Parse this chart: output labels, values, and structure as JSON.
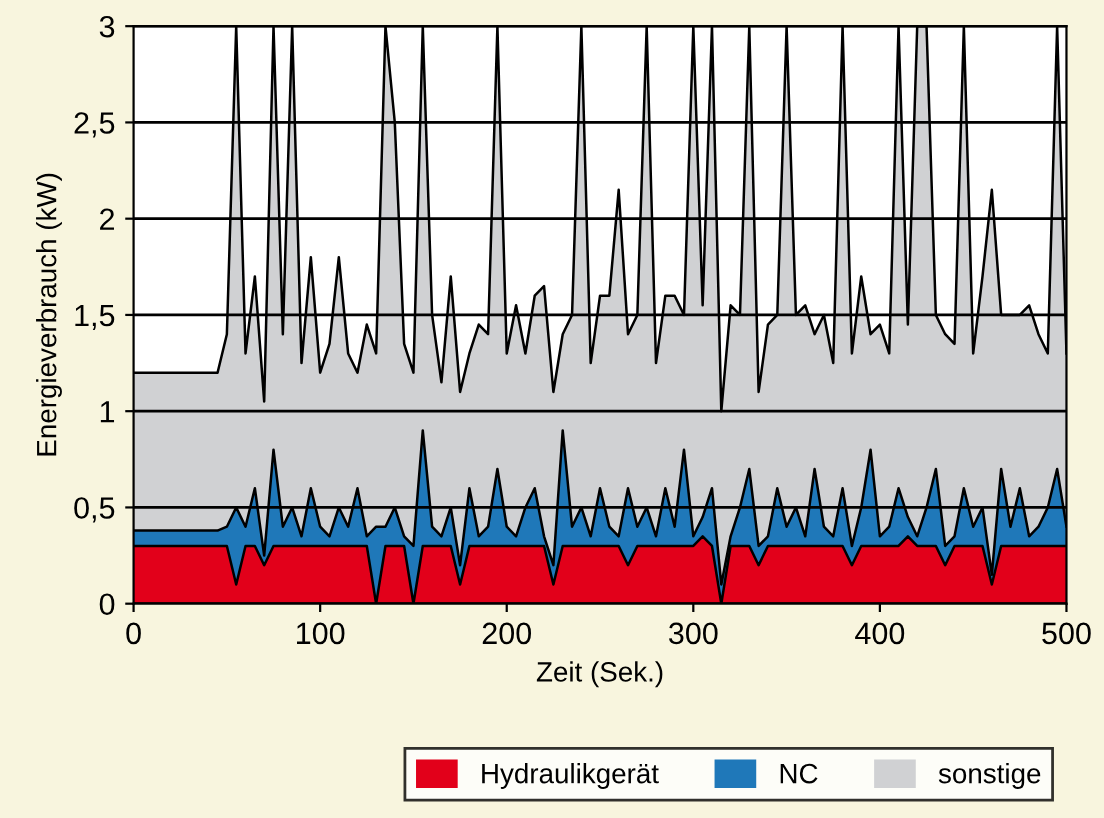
{
  "chart_data": {
    "type": "area",
    "stacked": true,
    "xlabel": "Zeit (Sek.)",
    "ylabel": "Energieverbrauch (kW)",
    "x": [
      0,
      45,
      50,
      55,
      60,
      65,
      70,
      75,
      80,
      85,
      90,
      95,
      100,
      105,
      110,
      115,
      120,
      125,
      130,
      135,
      140,
      145,
      150,
      155,
      160,
      165,
      170,
      175,
      180,
      185,
      190,
      195,
      200,
      205,
      210,
      215,
      220,
      225,
      230,
      235,
      240,
      245,
      250,
      255,
      260,
      265,
      270,
      275,
      280,
      285,
      290,
      295,
      300,
      305,
      310,
      315,
      320,
      325,
      330,
      335,
      340,
      345,
      350,
      355,
      360,
      365,
      370,
      375,
      380,
      385,
      390,
      395,
      400,
      405,
      410,
      415,
      420,
      425,
      430,
      435,
      440,
      445,
      450,
      455,
      460,
      465,
      470,
      475,
      480,
      485,
      490,
      495,
      500
    ],
    "series": [
      {
        "name": "Hydraulikgerät",
        "color": "#e2001a",
        "values": [
          0.3,
          0.3,
          0.3,
          0.1,
          0.3,
          0.3,
          0.2,
          0.3,
          0.3,
          0.3,
          0.3,
          0.3,
          0.3,
          0.3,
          0.3,
          0.3,
          0.3,
          0.3,
          0,
          0.3,
          0.3,
          0.3,
          0,
          0.3,
          0.3,
          0.3,
          0.3,
          0.1,
          0.3,
          0.3,
          0.3,
          0.3,
          0.3,
          0.3,
          0.3,
          0.3,
          0.3,
          0.1,
          0.3,
          0.3,
          0.3,
          0.3,
          0.3,
          0.3,
          0.3,
          0.2,
          0.3,
          0.3,
          0.3,
          0.3,
          0.3,
          0.3,
          0.3,
          0.35,
          0.3,
          0,
          0.3,
          0.3,
          0.3,
          0.2,
          0.3,
          0.3,
          0.3,
          0.3,
          0.3,
          0.3,
          0.3,
          0.3,
          0.3,
          0.2,
          0.3,
          0.3,
          0.3,
          0.3,
          0.3,
          0.35,
          0.3,
          0.3,
          0.3,
          0.2,
          0.3,
          0.3,
          0.3,
          0.3,
          0.1,
          0.3,
          0.3,
          0.3,
          0.3,
          0.3,
          0.3,
          0.3,
          0.3
        ]
      },
      {
        "name": "NC",
        "color": "#1f78b9",
        "values": [
          0.08,
          0.08,
          0.1,
          0.4,
          0.1,
          0.3,
          0.05,
          0.5,
          0.1,
          0.2,
          0.05,
          0.3,
          0.1,
          0.05,
          0.2,
          0.1,
          0.3,
          0.05,
          0.4,
          0.1,
          0.2,
          0.05,
          0.3,
          0.6,
          0.1,
          0.05,
          0.2,
          0.1,
          0.3,
          0.05,
          0.1,
          0.4,
          0.1,
          0.05,
          0.2,
          0.3,
          0.05,
          0.1,
          0.6,
          0.1,
          0.2,
          0.05,
          0.3,
          0.1,
          0.05,
          0.4,
          0.1,
          0.2,
          0.05,
          0.3,
          0.1,
          0.5,
          0.05,
          0.1,
          0.3,
          0.1,
          0.05,
          0.2,
          0.4,
          0.1,
          0.05,
          0.3,
          0.1,
          0.2,
          0.05,
          0.4,
          0.1,
          0.05,
          0.3,
          0.1,
          0.2,
          0.5,
          0.05,
          0.1,
          0.3,
          0.1,
          0.05,
          0.2,
          0.4,
          0.1,
          0.05,
          0.3,
          0.1,
          0.2,
          0.05,
          0.4,
          0.1,
          0.3,
          0.05,
          0.1,
          0.2,
          0.4,
          0.1
        ]
      },
      {
        "name": "sonstige",
        "color": "#d0d1d3",
        "values": [
          0.82,
          0.82,
          1.0,
          2.5,
          0.9,
          1.1,
          0.8,
          2.2,
          1.0,
          2.5,
          0.9,
          1.2,
          0.8,
          1.0,
          1.3,
          0.9,
          0.6,
          1.1,
          0.9,
          2.6,
          2.0,
          1.0,
          0.9,
          2.1,
          1.1,
          0.8,
          1.2,
          0.9,
          0.7,
          1.1,
          1.0,
          2.3,
          0.9,
          1.2,
          0.8,
          1.0,
          1.3,
          0.9,
          0.5,
          1.1,
          2.5,
          0.9,
          1.0,
          1.2,
          1.8,
          0.8,
          1.1,
          2.5,
          0.9,
          1.0,
          1.2,
          0.7,
          2.65,
          1.1,
          2.4,
          0.9,
          1.2,
          1.0,
          2.3,
          0.8,
          1.1,
          0.9,
          2.6,
          1.0,
          1.2,
          0.7,
          1.1,
          0.9,
          2.4,
          1.0,
          1.2,
          0.6,
          1.1,
          0.9,
          2.4,
          1.0,
          2.65,
          2.5,
          0.8,
          1.1,
          1.0,
          2.4,
          0.9,
          1.2,
          2.0,
          0.8,
          1.1,
          0.9,
          1.2,
          1.0,
          0.8,
          2.3,
          0.9
        ]
      }
    ],
    "xlim": [
      0,
      500
    ],
    "xticks": [
      0,
      100,
      200,
      300,
      400,
      500
    ],
    "ylim": [
      0,
      3
    ],
    "yticks": [
      0,
      {
        "value": 0.5,
        "label": "0,5"
      },
      1,
      {
        "value": 1.5,
        "label": "1,5"
      },
      2,
      {
        "value": 2.5,
        "label": "2,5"
      },
      3
    ],
    "grid": "y",
    "legend": "bottom right"
  }
}
